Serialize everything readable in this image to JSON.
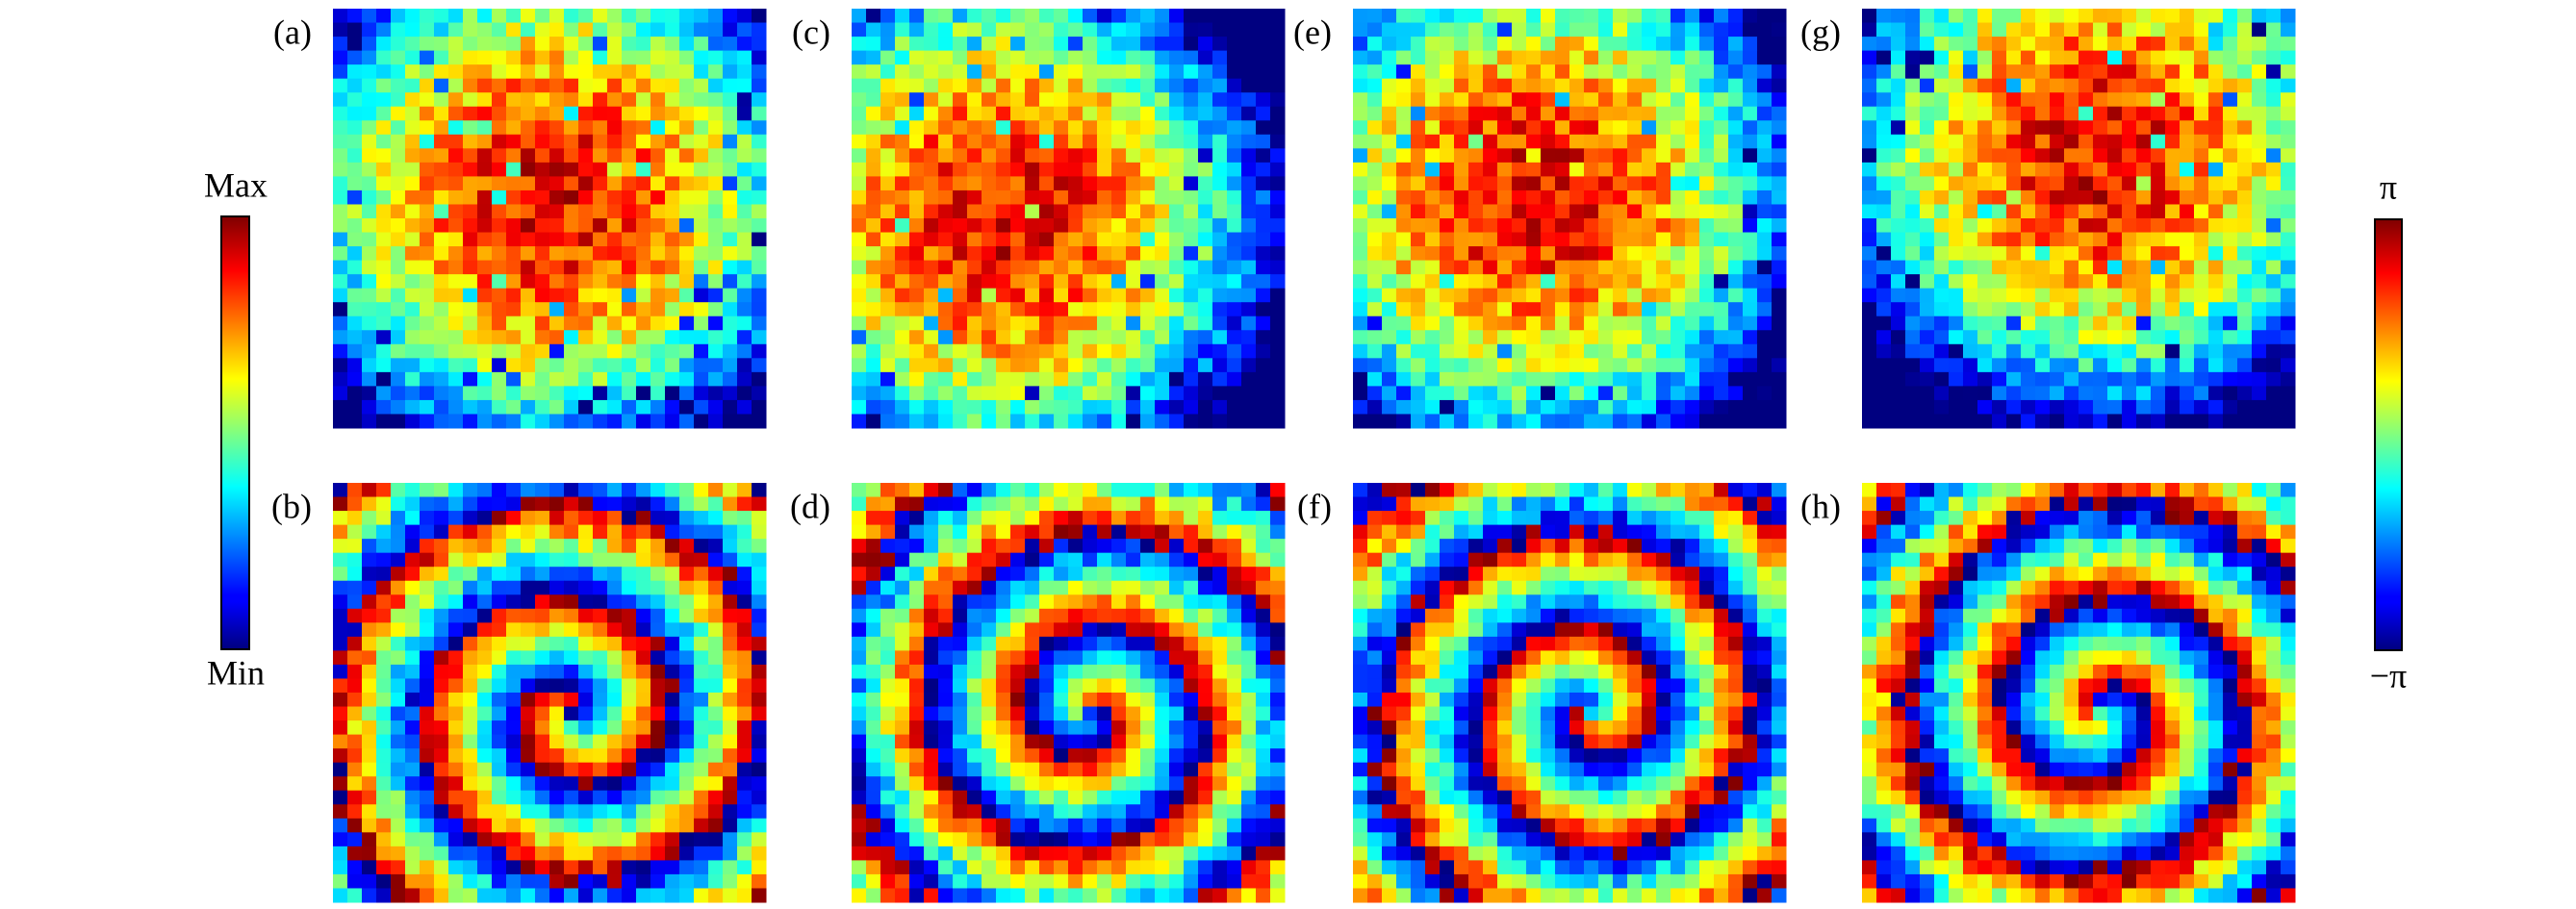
{
  "panels": [
    {
      "label": "(a)"
    },
    {
      "label": "(b)"
    },
    {
      "label": "(c)"
    },
    {
      "label": "(d)"
    },
    {
      "label": "(e)"
    },
    {
      "label": "(f)"
    },
    {
      "label": "(g)"
    },
    {
      "label": "(h)"
    }
  ],
  "colorbars": {
    "amplitude": {
      "max": "Max",
      "min": "Min"
    },
    "phase": {
      "max": "π",
      "min": "−π"
    }
  }
}
